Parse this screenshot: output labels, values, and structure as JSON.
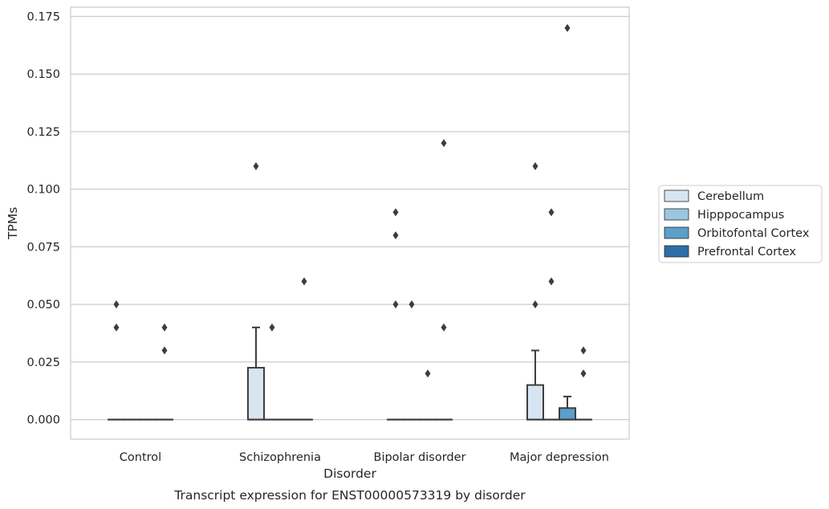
{
  "chart_data": {
    "type": "box",
    "title": "Transcript expression for ENST00000573319 by disorder",
    "xlabel": "Disorder",
    "ylabel": "TPMs",
    "ylim": [
      -0.0085,
      0.179
    ],
    "yticks": [
      0.0,
      0.025,
      0.05,
      0.075,
      0.1,
      0.125,
      0.15,
      0.175
    ],
    "ytick_labels": [
      "0.000",
      "0.025",
      "0.050",
      "0.075",
      "0.100",
      "0.125",
      "0.150",
      "0.175"
    ],
    "grid": "horizontal",
    "legend_position": "right",
    "categories": [
      "Control",
      "Schizophrenia",
      "Bipolar disorder",
      "Major depression"
    ],
    "series": [
      {
        "name": "Cerebellum",
        "color": "#d7e5f3",
        "boxes": [
          {
            "q1": 0.0,
            "median": 0.0,
            "q3": 0.0,
            "whisker_low": 0.0,
            "whisker_high": 0.0,
            "outliers": [
              0.04,
              0.05
            ]
          },
          {
            "q1": 0.0,
            "median": 0.0,
            "q3": 0.0225,
            "whisker_low": 0.0,
            "whisker_high": 0.04,
            "outliers": [
              0.11
            ]
          },
          {
            "q1": 0.0,
            "median": 0.0,
            "q3": 0.0,
            "whisker_low": 0.0,
            "whisker_high": 0.0,
            "outliers": [
              0.05,
              0.08,
              0.09
            ]
          },
          {
            "q1": 0.0,
            "median": 0.0,
            "q3": 0.015,
            "whisker_low": 0.0,
            "whisker_high": 0.03,
            "outliers": [
              0.05,
              0.11
            ]
          }
        ]
      },
      {
        "name": "Hipppocampus",
        "color": "#9ac6e0",
        "boxes": [
          {
            "q1": 0.0,
            "median": 0.0,
            "q3": 0.0,
            "whisker_low": 0.0,
            "whisker_high": 0.0,
            "outliers": []
          },
          {
            "q1": 0.0,
            "median": 0.0,
            "q3": 0.0,
            "whisker_low": 0.0,
            "whisker_high": 0.0,
            "outliers": [
              0.04
            ]
          },
          {
            "q1": 0.0,
            "median": 0.0,
            "q3": 0.0,
            "whisker_low": 0.0,
            "whisker_high": 0.0,
            "outliers": [
              0.05
            ]
          },
          {
            "q1": 0.0,
            "median": 0.0,
            "q3": 0.0,
            "whisker_low": 0.0,
            "whisker_high": 0.0,
            "outliers": [
              0.06,
              0.09
            ]
          }
        ]
      },
      {
        "name": "Orbitofontal Cortex",
        "color": "#5b9fcb",
        "boxes": [
          {
            "q1": 0.0,
            "median": 0.0,
            "q3": 0.0,
            "whisker_low": 0.0,
            "whisker_high": 0.0,
            "outliers": []
          },
          {
            "q1": 0.0,
            "median": 0.0,
            "q3": 0.0,
            "whisker_low": 0.0,
            "whisker_high": 0.0,
            "outliers": []
          },
          {
            "q1": 0.0,
            "median": 0.0,
            "q3": 0.0,
            "whisker_low": 0.0,
            "whisker_high": 0.0,
            "outliers": [
              0.02
            ]
          },
          {
            "q1": 0.0,
            "median": 0.0,
            "q3": 0.005,
            "whisker_low": 0.0,
            "whisker_high": 0.01,
            "outliers": [
              0.17
            ]
          }
        ]
      },
      {
        "name": "Prefrontal Cortex",
        "color": "#2d6ea9",
        "boxes": [
          {
            "q1": 0.0,
            "median": 0.0,
            "q3": 0.0,
            "whisker_low": 0.0,
            "whisker_high": 0.0,
            "outliers": [
              0.03,
              0.04
            ]
          },
          {
            "q1": 0.0,
            "median": 0.0,
            "q3": 0.0,
            "whisker_low": 0.0,
            "whisker_high": 0.0,
            "outliers": [
              0.06
            ]
          },
          {
            "q1": 0.0,
            "median": 0.0,
            "q3": 0.0,
            "whisker_low": 0.0,
            "whisker_high": 0.0,
            "outliers": [
              0.04,
              0.12
            ]
          },
          {
            "q1": 0.0,
            "median": 0.0,
            "q3": 0.0,
            "whisker_low": 0.0,
            "whisker_high": 0.0,
            "outliers": [
              0.02,
              0.03
            ]
          }
        ]
      }
    ]
  }
}
